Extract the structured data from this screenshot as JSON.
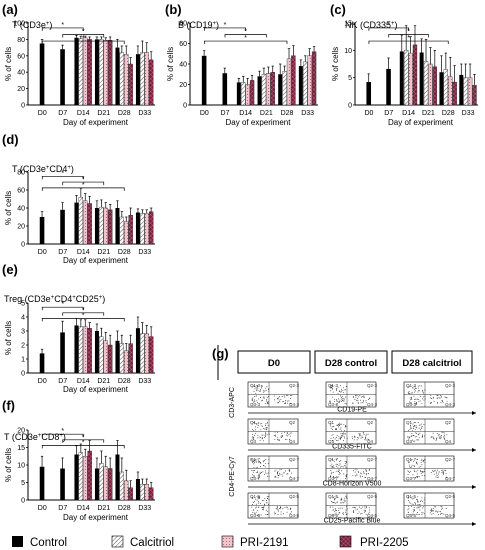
{
  "panels": {
    "a": {
      "letter": "(a)",
      "title_main": "T (CD3e",
      "title_sup": "+",
      "title_tail": ")"
    },
    "b": {
      "letter": "(b)",
      "title_main": "B (CD19",
      "title_sup": "+",
      "title_tail": ")"
    },
    "c": {
      "letter": "(c)",
      "title_main": "NK (CD335",
      "title_sup": "+",
      "title_tail": ")"
    },
    "d": {
      "letter": "(d)",
      "title_main": "T (CD3e",
      "title_sup": "+",
      "title_mid": "CD4",
      "title_sup2": "+",
      "title_tail": ")"
    },
    "e": {
      "letter": "(e)",
      "title_main": "Treg (CD3e",
      "title_sup": "+",
      "title_mid": "CD4",
      "title_sup2": "+",
      "title_mid2": "CD25",
      "title_sup3": "+",
      "title_tail": ")"
    },
    "f": {
      "letter": "(f)",
      "title_main": "T (CD3e",
      "title_sup": "+",
      "title_mid": "CD8",
      "title_sup2": "+",
      "title_tail": ")"
    },
    "g": {
      "letter": "(g)"
    }
  },
  "axis_labels": {
    "x": "Day of experiment",
    "y": "% of cells"
  },
  "star": "*",
  "legend": [
    {
      "name": "Control",
      "color": "#000000",
      "pattern": "solid"
    },
    {
      "name": "Calcitriol",
      "color": "#ffffff",
      "pattern": "diagonal-hatch"
    },
    {
      "name": "PRI-2191",
      "color": "#f2c4cc",
      "pattern": "dotted"
    },
    {
      "name": "PRI-2205",
      "color": "#7a1f3c",
      "pattern": "crosshatch"
    }
  ],
  "flow": {
    "headers": [
      "D0",
      "D28 control",
      "D28 calcitriol"
    ],
    "rows": [
      {
        "y_label": "CD3-APC",
        "x_label": "CD19-PE",
        "quadrants": [
          "Q1-3",
          "Q2-3",
          "Q3-3",
          "Q4-3"
        ]
      },
      {
        "y_label": "",
        "x_label": "CD335-FITC",
        "quadrants": [
          "Q1",
          "Q2",
          "Q3",
          "Q4"
        ]
      },
      {
        "y_label": "CD4-PE-Cy7",
        "x_label": "CD8-Horizon V500",
        "quadrants": [
          "Q1-7",
          "Q2-7",
          "Q3-7",
          "Q4-7"
        ]
      },
      {
        "y_label": "",
        "x_label": "CD25-Pacific Blue",
        "quadrants": [
          "Q1-5",
          "Q2-5",
          "Q3-5",
          "Q4-5"
        ]
      }
    ]
  },
  "chart_data": [
    {
      "id": "a",
      "type": "bar",
      "ylim": [
        0,
        100
      ],
      "yticks": [
        0,
        20,
        40,
        60,
        80,
        100
      ],
      "categories": [
        "D0",
        "D7",
        "D14",
        "D21",
        "D28",
        "D33"
      ],
      "series": [
        {
          "name": "Control",
          "values": [
            75,
            68,
            82,
            80,
            70,
            62
          ],
          "err": [
            5,
            5,
            3,
            3,
            10,
            10
          ]
        },
        {
          "name": "Calcitriol",
          "values": [
            null,
            null,
            81,
            80,
            64,
            64
          ],
          "err": [
            null,
            null,
            3,
            3,
            8,
            14
          ]
        },
        {
          "name": "PRI-2191",
          "values": [
            null,
            null,
            82,
            79,
            62,
            64
          ],
          "err": [
            null,
            null,
            2,
            3,
            10,
            12
          ]
        },
        {
          "name": "PRI-2205",
          "values": [
            null,
            null,
            80,
            79,
            50,
            55
          ],
          "err": [
            null,
            null,
            3,
            4,
            8,
            10
          ]
        }
      ]
    },
    {
      "id": "b",
      "type": "bar",
      "ylim": [
        0,
        80
      ],
      "yticks": [
        0,
        20,
        40,
        60,
        80
      ],
      "categories": [
        "D0",
        "D7",
        "D14",
        "D21",
        "D28",
        "D33"
      ],
      "series": [
        {
          "name": "Control",
          "values": [
            48,
            31,
            22,
            28,
            30,
            38
          ],
          "err": [
            5,
            5,
            4,
            5,
            10,
            6
          ]
        },
        {
          "name": "Calcitriol",
          "values": [
            null,
            null,
            22,
            30,
            33,
            42
          ],
          "err": [
            null,
            null,
            6,
            6,
            5,
            6
          ]
        },
        {
          "name": "PRI-2191",
          "values": [
            null,
            null,
            20,
            31,
            45,
            48
          ],
          "err": [
            null,
            null,
            6,
            6,
            10,
            7
          ]
        },
        {
          "name": "PRI-2205",
          "values": [
            null,
            null,
            24,
            32,
            48,
            52
          ],
          "err": [
            null,
            null,
            5,
            6,
            10,
            5
          ]
        }
      ]
    },
    {
      "id": "c",
      "type": "bar",
      "ylim": [
        0,
        15
      ],
      "yticks": [
        0,
        5,
        10,
        15
      ],
      "categories": [
        "D0",
        "D7",
        "D14",
        "D21",
        "D28",
        "D33"
      ],
      "series": [
        {
          "name": "Control",
          "values": [
            4.2,
            6.6,
            9.8,
            9.6,
            6.0,
            5.5
          ],
          "err": [
            1.5,
            2.0,
            3.0,
            2.5,
            3.0,
            2.0
          ]
        },
        {
          "name": "Calcitriol",
          "values": [
            null,
            null,
            10.0,
            8.0,
            6.5,
            5.0
          ],
          "err": [
            null,
            null,
            4.5,
            4.0,
            3.0,
            2.5
          ]
        },
        {
          "name": "PRI-2191",
          "values": [
            null,
            null,
            9.5,
            7.5,
            5.2,
            5.0
          ],
          "err": [
            null,
            null,
            3.0,
            3.0,
            3.5,
            2.5
          ]
        },
        {
          "name": "PRI-2205",
          "values": [
            null,
            null,
            11.0,
            7.0,
            4.2,
            3.6
          ],
          "err": [
            null,
            null,
            3.5,
            3.0,
            3.0,
            2.0
          ]
        }
      ]
    },
    {
      "id": "d",
      "type": "bar",
      "ylim": [
        0,
        80
      ],
      "yticks": [
        0,
        20,
        40,
        60,
        80
      ],
      "categories": [
        "D0",
        "D7",
        "D14",
        "D21",
        "D28",
        "D33"
      ],
      "series": [
        {
          "name": "Control",
          "values": [
            30,
            38,
            46,
            40,
            40,
            35
          ],
          "err": [
            6,
            8,
            8,
            8,
            8,
            4
          ]
        },
        {
          "name": "Calcitriol",
          "values": [
            null,
            null,
            52,
            41,
            30,
            34
          ],
          "err": [
            null,
            null,
            10,
            8,
            6,
            4
          ]
        },
        {
          "name": "PRI-2191",
          "values": [
            null,
            null,
            48,
            40,
            25,
            34
          ],
          "err": [
            null,
            null,
            8,
            6,
            5,
            4
          ]
        },
        {
          "name": "PRI-2205",
          "values": [
            null,
            null,
            45,
            38,
            32,
            36
          ],
          "err": [
            null,
            null,
            8,
            6,
            8,
            4
          ]
        }
      ]
    },
    {
      "id": "e",
      "type": "bar",
      "ylim": [
        0,
        5
      ],
      "yticks": [
        0,
        1,
        2,
        3,
        4,
        5
      ],
      "categories": [
        "D0",
        "D7",
        "D14",
        "D21",
        "D28",
        "D33"
      ],
      "series": [
        {
          "name": "Control",
          "values": [
            1.4,
            2.9,
            3.4,
            3.0,
            2.3,
            3.2
          ],
          "err": [
            0.3,
            0.8,
            0.5,
            0.5,
            0.7,
            0.8
          ]
        },
        {
          "name": "Calcitriol",
          "values": [
            null,
            null,
            3.3,
            2.6,
            2.1,
            2.8
          ],
          "err": [
            null,
            null,
            0.5,
            0.6,
            0.6,
            0.8
          ]
        },
        {
          "name": "PRI-2191",
          "values": [
            null,
            null,
            3.3,
            2.3,
            1.6,
            2.8
          ],
          "err": [
            null,
            null,
            0.5,
            0.6,
            0.5,
            0.6
          ]
        },
        {
          "name": "PRI-2205",
          "values": [
            null,
            null,
            3.2,
            2.0,
            2.1,
            2.6
          ],
          "err": [
            null,
            null,
            0.4,
            0.7,
            0.6,
            0.7
          ]
        }
      ]
    },
    {
      "id": "f",
      "type": "bar",
      "ylim": [
        0,
        20
      ],
      "yticks": [
        0,
        5,
        10,
        15,
        20
      ],
      "categories": [
        "D0",
        "D7",
        "D14",
        "D21",
        "D28",
        "D33"
      ],
      "series": [
        {
          "name": "Control",
          "values": [
            9.5,
            9.0,
            13.0,
            9.0,
            13.0,
            6.0
          ],
          "err": [
            3.0,
            3.0,
            2.5,
            3.0,
            4.0,
            2.0
          ]
        },
        {
          "name": "Calcitriol",
          "values": [
            null,
            null,
            13.5,
            10.5,
            8.0,
            4.5
          ],
          "err": [
            null,
            null,
            2.5,
            3.5,
            4.0,
            1.5
          ]
        },
        {
          "name": "PRI-2191",
          "values": [
            null,
            null,
            12.5,
            9.5,
            5.5,
            4.5
          ],
          "err": [
            null,
            null,
            2.0,
            3.0,
            3.0,
            1.5
          ]
        },
        {
          "name": "PRI-2205",
          "values": [
            null,
            null,
            14.0,
            9.0,
            3.5,
            3.5
          ],
          "err": [
            null,
            null,
            3.0,
            3.0,
            2.0,
            1.5
          ]
        }
      ]
    }
  ]
}
